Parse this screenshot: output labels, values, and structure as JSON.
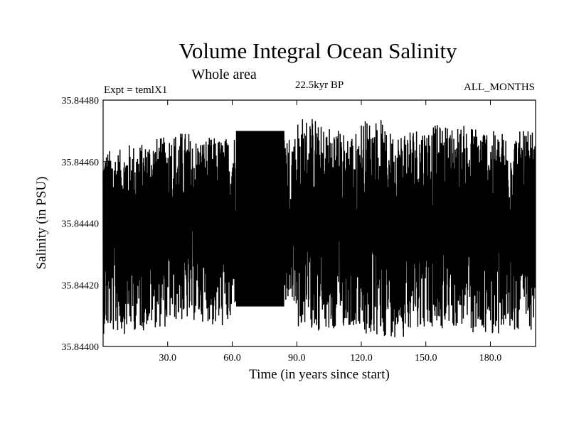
{
  "chart_data": {
    "type": "line",
    "title": "Volume Integral Ocean Salinity",
    "subtitle": "Whole area",
    "experiment_label": "Expt = temlX1",
    "period_label": "22.5kyr BP",
    "months_label": "ALL_MONTHS",
    "xlabel": "Time (in years since start)",
    "ylabel": "Salinity (in PSU)",
    "xlim": [
      0,
      201
    ],
    "ylim": [
      35.844,
      35.8448
    ],
    "x_ticks": [
      30,
      60,
      90,
      120,
      150,
      180
    ],
    "x_tick_labels": [
      "30.0",
      "60.0",
      "90.0",
      "120.0",
      "150.0",
      "180.0"
    ],
    "y_ticks": [
      35.844,
      35.8442,
      35.8444,
      35.8446,
      35.8448
    ],
    "y_tick_labels": [
      "35.84400",
      "35.84420",
      "35.84440",
      "35.84460",
      "35.84480"
    ],
    "grid": false,
    "series": [
      {
        "name": "Salinity",
        "description": "monthly values (12 per year) oscillating about ~35.84439 PSU",
        "approx_mean": 35.84439,
        "regular_segment": {
          "x_start": 62,
          "x_end": 84,
          "max": 35.8447,
          "min": 35.84413
        },
        "max_by_decade": [
          35.84464,
          35.84466,
          35.84468,
          35.8447,
          35.84468,
          35.84468,
          35.8447,
          35.8447,
          35.8447,
          35.84475,
          35.84472,
          35.8447,
          35.84474,
          35.8447,
          35.84472,
          35.84472,
          35.84472,
          35.84472,
          35.8447,
          35.8447,
          35.84466
        ],
        "min_by_decade": [
          35.84404,
          35.84405,
          35.84406,
          35.84408,
          35.84408,
          35.84406,
          35.84413,
          35.84413,
          35.84413,
          35.84406,
          35.84404,
          35.84406,
          35.84402,
          35.84403,
          35.84406,
          35.84405,
          35.84406,
          35.84404,
          35.84404,
          35.84405,
          35.84402
        ]
      }
    ]
  }
}
